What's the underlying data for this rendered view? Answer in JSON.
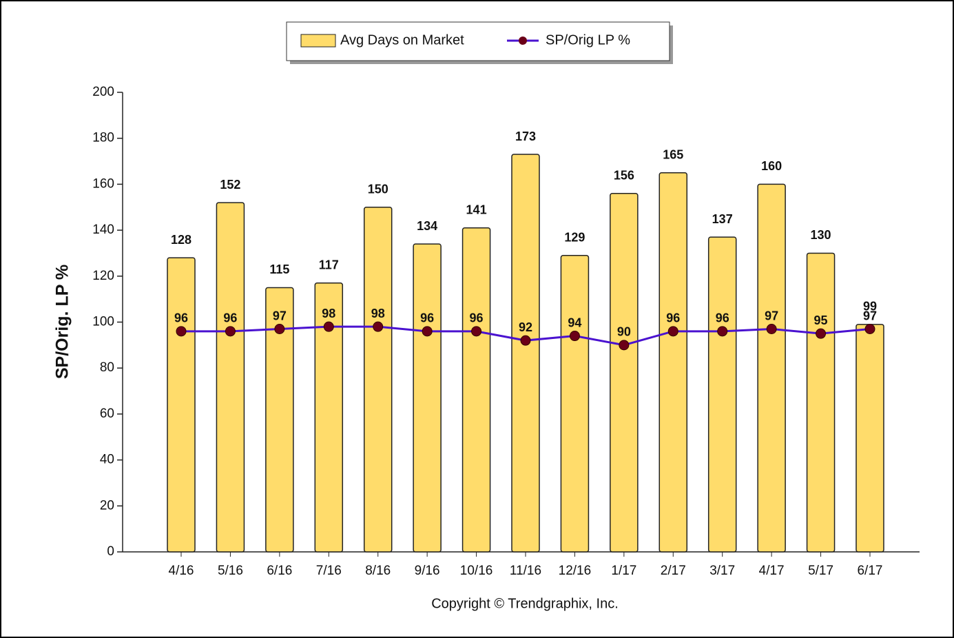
{
  "chart_data": {
    "type": "bar_line",
    "categories": [
      "4/16",
      "5/16",
      "6/16",
      "7/16",
      "8/16",
      "9/16",
      "10/16",
      "11/16",
      "12/16",
      "1/17",
      "2/17",
      "3/17",
      "4/17",
      "5/17",
      "6/17"
    ],
    "series": [
      {
        "name": "Avg Days on Market",
        "type": "bar",
        "color": "#ffdc6b",
        "values": [
          128,
          152,
          115,
          117,
          150,
          134,
          141,
          173,
          129,
          156,
          165,
          137,
          160,
          130,
          99
        ]
      },
      {
        "name": "SP/Orig LP %",
        "type": "line",
        "color": "#4a12d0",
        "marker_color": "#6b0018",
        "values": [
          96,
          96,
          97,
          98,
          98,
          96,
          96,
          92,
          94,
          90,
          96,
          96,
          97,
          95,
          97
        ]
      }
    ],
    "y_label": "SP/Orig. LP %",
    "ylim": [
      0,
      200
    ],
    "yticks": [
      0,
      20,
      40,
      60,
      80,
      100,
      120,
      140,
      160,
      180,
      200
    ],
    "annotation": "Copyright © Trendgraphix, Inc."
  }
}
